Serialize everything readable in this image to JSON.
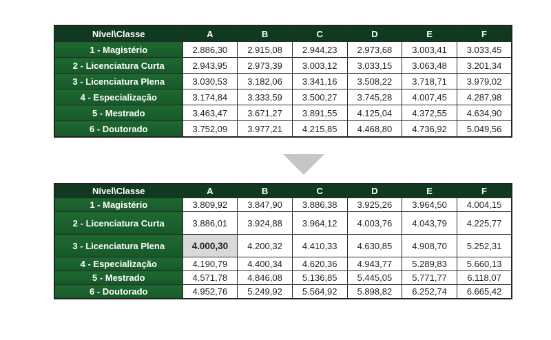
{
  "header": [
    "Nível\\Classe",
    "A",
    "B",
    "C",
    "D",
    "E",
    "F"
  ],
  "table_before": [
    {
      "label": "1 - Magistério",
      "values": [
        "2.886,30",
        "2.915,08",
        "2.944,23",
        "2.973,68",
        "3.003,41",
        "3.033,45"
      ]
    },
    {
      "label": "2 - Licenciatura Curta",
      "values": [
        "2.943,95",
        "2.973,39",
        "3.003,12",
        "3.033,15",
        "3.063,48",
        "3.201,34"
      ]
    },
    {
      "label": "3 - Licenciatura Plena",
      "values": [
        "3.030,53",
        "3.182,06",
        "3.341,16",
        "3.508,22",
        "3.718,71",
        "3.979,02"
      ]
    },
    {
      "label": "4 - Especialização",
      "values": [
        "3.174,84",
        "3.333,59",
        "3.500,27",
        "3.745,28",
        "4.007,45",
        "4.287,98"
      ]
    },
    {
      "label": "5 - Mestrado",
      "values": [
        "3.463,47",
        "3.671,27",
        "3.891,55",
        "4.125,04",
        "4.372,55",
        "4.634,90"
      ]
    },
    {
      "label": "6 - Doutorado",
      "values": [
        "3.752,09",
        "3.977,21",
        "4.215,85",
        "4.468,80",
        "4.736,92",
        "5.049,56"
      ]
    }
  ],
  "table_after": [
    {
      "label": "1 - Magistério",
      "values": [
        "3.809,92",
        "3.847,90",
        "3.886,38",
        "3.925,26",
        "3.964,50",
        "4.004,15"
      ]
    },
    {
      "label": "2 - Licenciatura Curta",
      "values": [
        "3.886,01",
        "3.924,88",
        "3.964,12",
        "4.003,76",
        "4.043,79",
        "4.225,77"
      ]
    },
    {
      "label": "3 - Licenciatura Plena",
      "values": [
        "4.000,30",
        "4.200,32",
        "4.410,33",
        "4.630,85",
        "4.908,70",
        "5.252,31"
      ]
    },
    {
      "label": "4 - Especialização",
      "values": [
        "4.190,79",
        "4.400,34",
        "4.620,36",
        "4.943,77",
        "5.289,83",
        "5.660,13"
      ]
    },
    {
      "label": "5 - Mestrado",
      "values": [
        "4.571,78",
        "4.846,08",
        "5.136,85",
        "5.445,05",
        "5.771,77",
        "6.118,07"
      ]
    },
    {
      "label": "6 - Doutorado",
      "values": [
        "4.952,76",
        "5.249,92",
        "5.564,92",
        "5.898,82",
        "6.252,74",
        "6.665,42"
      ]
    }
  ],
  "highlighted_value": "4.000,30",
  "colors": {
    "header_bg": "#0f3a1f",
    "row_label_bg": "#1e6a30",
    "highlight_bg": "#d9d9d9",
    "arrow": "#c6c6c6"
  }
}
